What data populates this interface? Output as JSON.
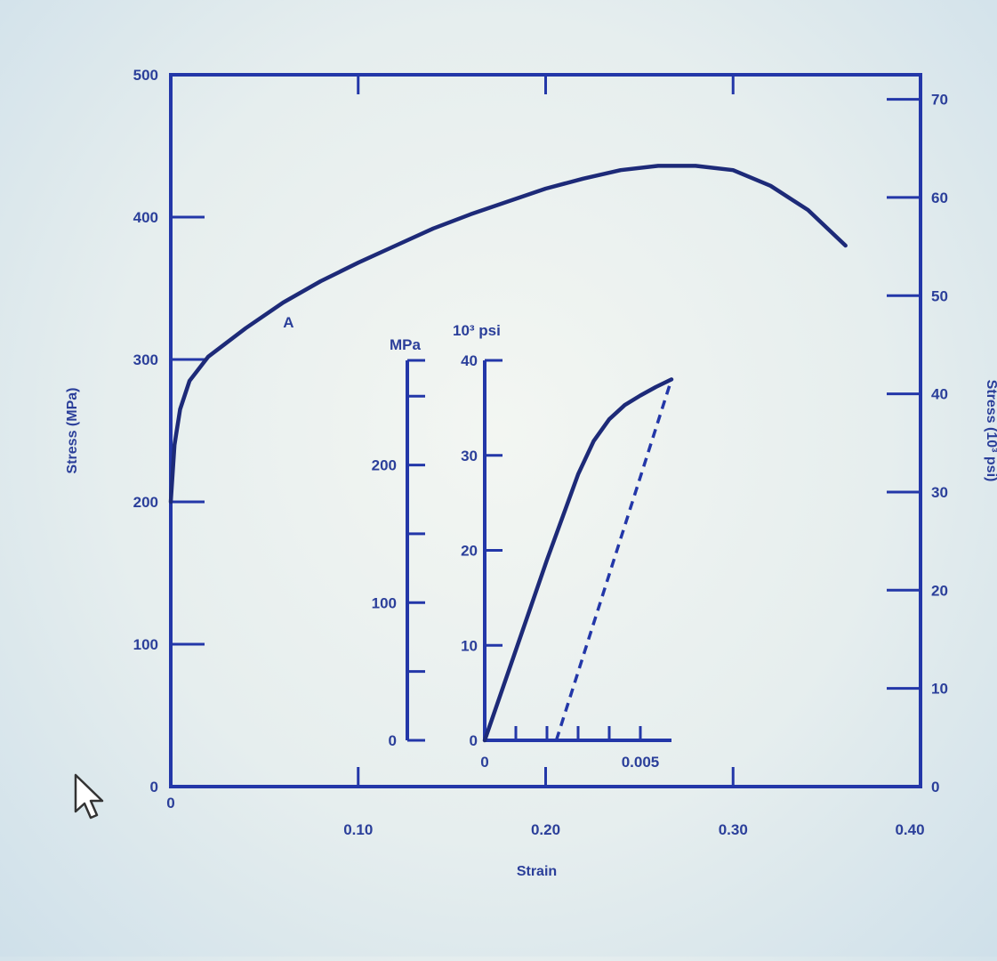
{
  "chart_data": [
    {
      "type": "line",
      "xlabel": "Strain",
      "ylabel": "Stress (MPa)",
      "y2label": "Stress (10³ psi)",
      "xlim": [
        0,
        0.4
      ],
      "ylim": [
        0,
        500
      ],
      "y2lim": [
        0,
        72.5
      ],
      "xticks": [
        "0",
        "0.10",
        "0.20",
        "0.30",
        "0.40"
      ],
      "yticks": [
        "0",
        "100",
        "200",
        "300",
        "400",
        "500"
      ],
      "y2ticks": [
        "0",
        "10",
        "20",
        "30",
        "40",
        "50",
        "60",
        "70"
      ],
      "annotation": "A",
      "series": [
        {
          "x": [
            0,
            0.002,
            0.005,
            0.01,
            0.02,
            0.04,
            0.06,
            0.08,
            0.1,
            0.12,
            0.14,
            0.16,
            0.18,
            0.2,
            0.22,
            0.24,
            0.26,
            0.28,
            0.3,
            0.32,
            0.34,
            0.36
          ],
          "y": [
            200,
            240,
            265,
            285,
            302,
            322,
            340,
            355,
            368,
            380,
            392,
            402,
            411,
            420,
            427,
            433,
            436,
            436,
            433,
            422,
            405,
            380
          ]
        }
      ]
    },
    {
      "type": "line",
      "xlim": [
        0,
        0.006
      ],
      "ylim": [
        0,
        40
      ],
      "y2lim": [
        0,
        276
      ],
      "xticks": [
        "0",
        "0.005"
      ],
      "yticks": [
        "0",
        "10",
        "20",
        "30",
        "40"
      ],
      "y2ticks": [
        "0",
        "100",
        "200"
      ],
      "ylabel_top": "10³ psi",
      "y2label_top": "MPa",
      "series": [
        {
          "x": [
            0,
            0.001,
            0.002,
            0.003,
            0.0035,
            0.004,
            0.0045,
            0.005,
            0.0055,
            0.006
          ],
          "y": [
            0,
            9.5,
            19,
            28,
            31.5,
            33.8,
            35.3,
            36.3,
            37.2,
            38
          ]
        },
        {
          "x": [
            0.0023,
            0.006
          ],
          "y": [
            0,
            38
          ]
        }
      ]
    }
  ]
}
